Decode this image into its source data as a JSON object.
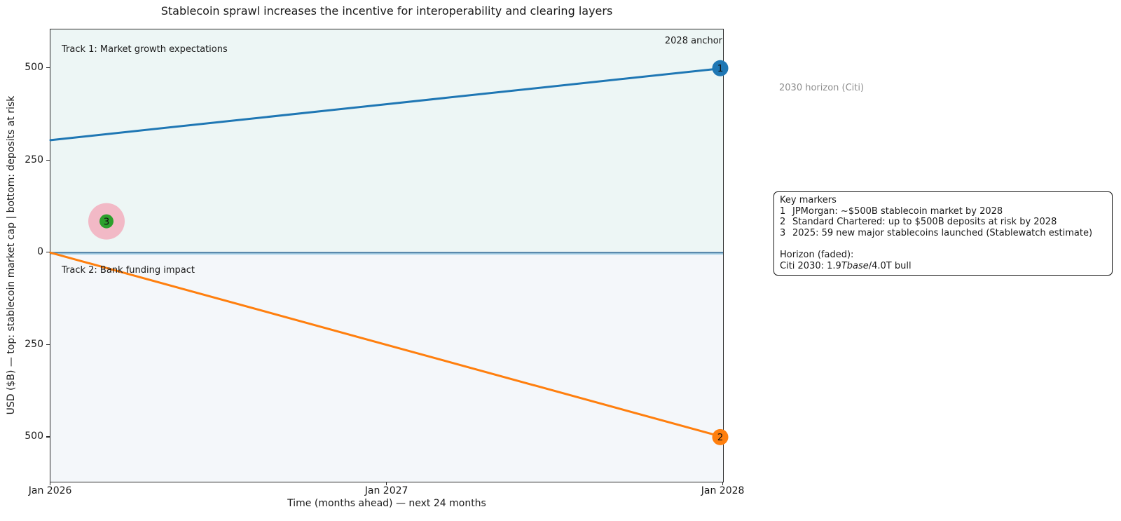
{
  "figure": {
    "title": "Stablecoin sprawl increases the incentive for interoperability and clearing layers"
  },
  "annotations": {
    "track1": "Track 1: Market growth expectations",
    "track2": "Track 2: Bank funding impact",
    "anchor": "2028 anchor",
    "horizon_note": "2030 horizon (Citi)",
    "horizon_note_color": "#8e8e8e"
  },
  "legend": {
    "title": "Key markers",
    "items": [
      {
        "num": "1",
        "text": "JPMorgan: ~$500B stablecoin market by 2028"
      },
      {
        "num": "2",
        "text": "Standard Chartered: up to $500B deposits at risk by 2028"
      },
      {
        "num": "3",
        "text": "2025: 59 new major stablecoins launched (Stablewatch estimate)"
      }
    ],
    "horizon_heading": "Horizon (faded):",
    "citi_prefix": "Citi 2030: 1.9",
    "citi_italic": "Tbase",
    "citi_suffix": "/4.0T bull"
  },
  "chart_data": {
    "type": "line",
    "title": "Stablecoin sprawl increases the incentive for interoperability and clearing layers",
    "xlabel": "Time (months ahead) — next 24 months",
    "ylabel": "USD ($B) — top: stablecoin market cap | bottom: deposits at risk",
    "xlim": [
      0,
      24
    ],
    "ylim": [
      -621,
      605
    ],
    "grid": false,
    "x_ticks": [
      {
        "x": 0,
        "label": "Jan 2026"
      },
      {
        "x": 12,
        "label": "Jan 2027"
      },
      {
        "x": 24,
        "label": "Jan 2028"
      }
    ],
    "y_ticks": [
      {
        "v": 500,
        "label": "500"
      },
      {
        "v": 250,
        "label": "250"
      },
      {
        "v": 0,
        "label": "0"
      },
      {
        "v": -250,
        "label": "250"
      },
      {
        "v": -500,
        "label": "500"
      }
    ],
    "series": [
      {
        "name": "Track 1: Market growth expectations",
        "color": "#1f77b4",
        "width": 3,
        "points": [
          [
            0,
            305
          ],
          [
            24,
            500
          ]
        ]
      },
      {
        "name": "Track 2: Bank funding impact",
        "color": "#ff7f0e",
        "width": 3,
        "points": [
          [
            0,
            0
          ],
          [
            24,
            -500
          ]
        ]
      }
    ],
    "zero_line": {
      "value": 0,
      "color": "#4a7da3",
      "glow": "#a9d4e9"
    },
    "markers": [
      {
        "label": "1",
        "x": 24,
        "y": 500,
        "fill": "#1f77b4",
        "r": 11.5
      },
      {
        "label": "2",
        "x": 24,
        "y": -500,
        "fill": "#ff7f0e",
        "r": 11.5
      },
      {
        "label": "3",
        "x": 2,
        "y": 85,
        "fill": "#2ca02c",
        "r": 10,
        "halo": "#f2b9c6",
        "halo_r": 26
      }
    ],
    "background_bands": [
      {
        "from_v": 605,
        "to_v": 0,
        "color": "#edf6f5"
      },
      {
        "from_v": 0,
        "to_v": -621,
        "color": "#f4f7fa"
      }
    ]
  }
}
